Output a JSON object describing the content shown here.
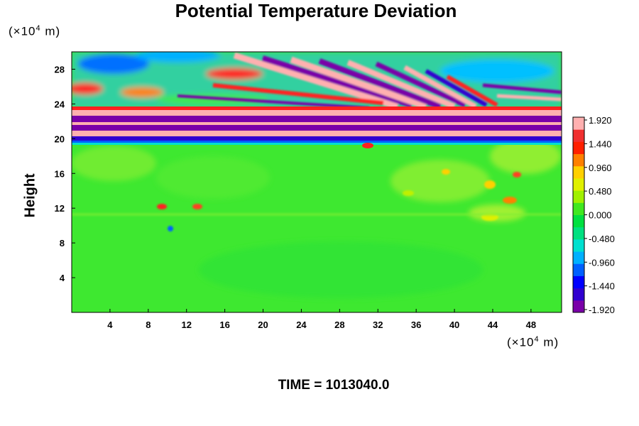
{
  "chart_data": {
    "type": "heatmap",
    "title": "Potential Temperature Deviation",
    "ylabel": "Height",
    "x_unit": "(×10",
    "x_unit_exp": "4",
    "x_unit_tail": " m)",
    "y_unit": "(×10",
    "y_unit_exp": "4",
    "y_unit_tail": " m)",
    "xlim": [
      0,
      51.2
    ],
    "ylim": [
      0,
      30
    ],
    "x_ticks": [
      4,
      8,
      12,
      16,
      20,
      24,
      28,
      32,
      36,
      40,
      44,
      48
    ],
    "x_tick_labels": [
      "4",
      "8",
      "12",
      "16",
      "20",
      "24",
      "28",
      "32",
      "36",
      "40",
      "44",
      "48"
    ],
    "y_ticks": [
      4,
      8,
      12,
      16,
      20,
      24,
      28
    ],
    "y_tick_labels": [
      "4",
      "8",
      "12",
      "16",
      "20",
      "24",
      "28"
    ],
    "colorbar": {
      "min": -1.92,
      "max": 1.92,
      "tick_values": [
        1.92,
        1.44,
        0.96,
        0.48,
        0.0,
        -0.48,
        -0.96,
        -1.44,
        -1.92
      ],
      "tick_labels": [
        "1.920",
        "1.440",
        "0.960",
        "0.480",
        "0.000",
        "-0.480",
        "-0.960",
        "-1.440",
        "-1.920"
      ],
      "colors_low_to_high": [
        "#7a00a8",
        "#3000d0",
        "#0000ff",
        "#0060ff",
        "#00b0ff",
        "#00e0d0",
        "#00e080",
        "#00e040",
        "#40e820",
        "#a0f000",
        "#e0f000",
        "#ffd000",
        "#ff8000",
        "#ff2000",
        "#f03030",
        "#ffb0b0"
      ]
    },
    "annotation": "TIME = 1013040.0",
    "grid": false
  }
}
